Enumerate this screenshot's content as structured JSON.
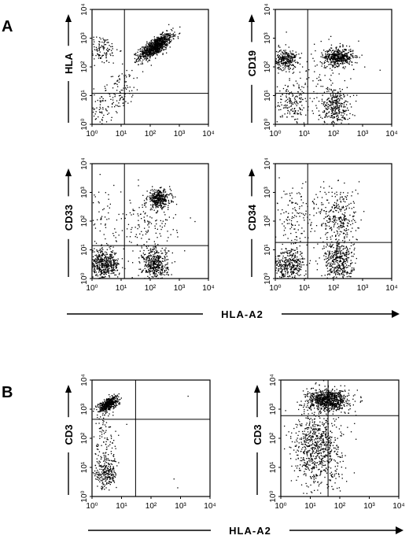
{
  "panel_labels": {
    "A": "A",
    "B": "B"
  },
  "shared_xlabel_A": "HLA-A2",
  "shared_xlabel_B": "HLA-A2",
  "decade_labels": [
    "10⁰",
    "10¹",
    "10²",
    "10³",
    "10⁴"
  ],
  "dot_color": "#000000",
  "chart_data": [
    {
      "type": "scatter",
      "xscale": "log",
      "yscale": "log",
      "xlim": [
        1,
        10000
      ],
      "ylim": [
        1,
        10000
      ],
      "xlabel": "",
      "ylabel": "HLA",
      "gate": {
        "x": 13,
        "y": 12
      },
      "clusters": [
        {
          "cx": 150,
          "cy": 500,
          "sx": 0.28,
          "sy": 0.22,
          "rho": 0.75,
          "n": 900
        },
        {
          "cx": 2,
          "cy": 400,
          "sx": 0.3,
          "sy": 0.25,
          "n": 130
        },
        {
          "cx": 8,
          "cy": 12,
          "sx": 0.4,
          "sy": 0.45,
          "rho": 0.6,
          "n": 120
        },
        {
          "cx": 1.5,
          "cy": 3,
          "sx": 0.2,
          "sy": 0.35,
          "n": 50
        }
      ]
    },
    {
      "type": "scatter",
      "xscale": "log",
      "yscale": "log",
      "xlim": [
        1,
        10000
      ],
      "ylim": [
        1,
        10000
      ],
      "xlabel": "",
      "ylabel": "CD19",
      "gate": {
        "x": 13,
        "y": 12
      },
      "clusters": [
        {
          "cx": 150,
          "cy": 220,
          "sx": 0.25,
          "sy": 0.15,
          "n": 450
        },
        {
          "cx": 2.2,
          "cy": 180,
          "sx": 0.2,
          "sy": 0.18,
          "n": 280
        },
        {
          "cx": 120,
          "cy": 4,
          "sx": 0.25,
          "sy": 0.35,
          "n": 330
        },
        {
          "cx": 4,
          "cy": 5,
          "sx": 0.35,
          "sy": 0.4,
          "n": 180
        },
        {
          "cx": 30,
          "cy": 60,
          "sx": 0.7,
          "sy": 0.6,
          "n": 90
        }
      ]
    },
    {
      "type": "scatter",
      "xscale": "log",
      "yscale": "log",
      "xlim": [
        1,
        10000
      ],
      "ylim": [
        1,
        10000
      ],
      "xlabel": "",
      "ylabel": "CD33",
      "gate": {
        "x": 13,
        "y": 14
      },
      "clusters": [
        {
          "cx": 200,
          "cy": 600,
          "sx": 0.2,
          "sy": 0.15,
          "n": 350
        },
        {
          "cx": 2.5,
          "cy": 3,
          "sx": 0.28,
          "sy": 0.25,
          "n": 500
        },
        {
          "cx": 150,
          "cy": 3,
          "sx": 0.22,
          "sy": 0.3,
          "n": 420
        },
        {
          "cx": 80,
          "cy": 60,
          "sx": 0.5,
          "sy": 0.6,
          "n": 160
        },
        {
          "cx": 3,
          "cy": 100,
          "sx": 0.35,
          "sy": 0.6,
          "n": 60
        }
      ]
    },
    {
      "type": "scatter",
      "xscale": "log",
      "yscale": "log",
      "xlim": [
        1,
        10000
      ],
      "ylim": [
        1,
        10000
      ],
      "xlabel": "",
      "ylabel": "CD34",
      "gate": {
        "x": 13,
        "y": 18
      },
      "clusters": [
        {
          "cx": 3,
          "cy": 3,
          "sx": 0.3,
          "sy": 0.3,
          "n": 380
        },
        {
          "cx": 150,
          "cy": 4,
          "sx": 0.25,
          "sy": 0.4,
          "n": 420
        },
        {
          "cx": 150,
          "cy": 150,
          "sx": 0.35,
          "sy": 0.55,
          "n": 300
        },
        {
          "cx": 4,
          "cy": 150,
          "sx": 0.35,
          "sy": 0.55,
          "n": 140
        }
      ]
    },
    {
      "type": "scatter",
      "xscale": "log",
      "yscale": "log",
      "xlim": [
        1,
        10000
      ],
      "ylim": [
        1,
        10000
      ],
      "xlabel": "",
      "ylabel": "CD3",
      "gate": {
        "x": 30,
        "y": 450
      },
      "clusters": [
        {
          "cx": 3.5,
          "cy": 1500,
          "sx": 0.17,
          "sy": 0.13,
          "rho": 0.6,
          "n": 450
        },
        {
          "cx": 3,
          "cy": 6,
          "sx": 0.18,
          "sy": 0.25,
          "n": 220
        },
        {
          "cx": 3,
          "cy": 80,
          "sx": 0.2,
          "sy": 0.6,
          "n": 110
        }
      ],
      "extra_points": [
        [
          600,
          4
        ],
        [
          800,
          2
        ],
        [
          1800,
          2800
        ],
        [
          15,
          300
        ]
      ]
    },
    {
      "type": "scatter",
      "xscale": "log",
      "yscale": "log",
      "xlim": [
        1,
        10000
      ],
      "ylim": [
        1,
        10000
      ],
      "xlabel": "",
      "ylabel": "CD3",
      "gate": {
        "x": 40,
        "y": 600
      },
      "clusters": [
        {
          "cx": 40,
          "cy": 2000,
          "sx": 0.35,
          "sy": 0.18,
          "n": 800
        },
        {
          "cx": 18,
          "cy": 80,
          "sx": 0.4,
          "sy": 0.55,
          "n": 600
        },
        {
          "cx": 20,
          "cy": 8,
          "sx": 0.45,
          "sy": 0.4,
          "n": 160
        }
      ]
    }
  ]
}
